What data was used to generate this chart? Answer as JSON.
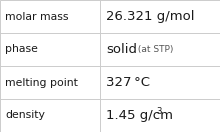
{
  "rows": [
    {
      "label": "molar mass",
      "value": "26.321 g/mol",
      "type": "plain"
    },
    {
      "label": "phase",
      "value": "solid",
      "value_suffix": " (at STP)",
      "type": "phase"
    },
    {
      "label": "melting point",
      "value": "327 °C",
      "type": "plain"
    },
    {
      "label": "density",
      "value": "1.45 g/cm",
      "superscript": "3",
      "type": "super"
    }
  ],
  "col_split": 0.455,
  "background_color": "#ffffff",
  "border_color": "#cccccc",
  "text_color": "#1a1a1a",
  "label_fontsize": 7.8,
  "value_fontsize": 9.5,
  "suffix_fontsize": 6.5,
  "super_fontsize": 6.2,
  "font_family": "DejaVu Sans"
}
